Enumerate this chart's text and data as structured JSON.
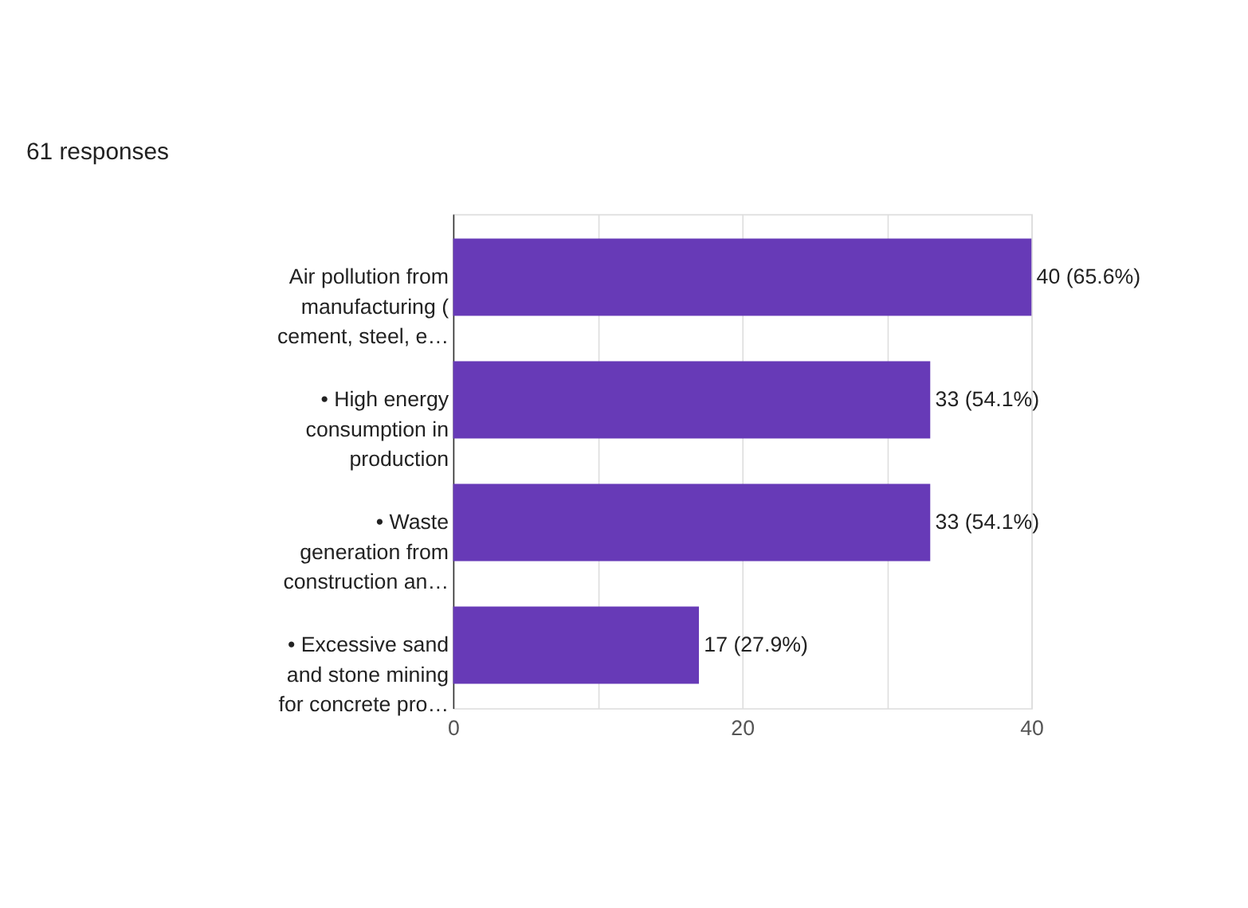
{
  "chart_data": {
    "type": "bar",
    "orientation": "horizontal",
    "title": "61 responses",
    "categories": [
      "Air pollution from\nmanufacturing (\ncement, steel, e…",
      "• High energy\nconsumption in\nproduction",
      "• Waste\ngeneration from\nconstruction an…",
      "• Excessive sand\nand stone mining\nfor concrete pro…"
    ],
    "values": [
      40,
      33,
      33,
      17
    ],
    "color": "#673ab7",
    "value_labels": [
      "40 (65.6%)",
      "33 (54.1%)",
      "33 (54.1%)",
      "17 (27.9%)"
    ],
    "xlim": [
      0,
      40
    ],
    "xticks": [
      0,
      {
        "value": 10,
        "label": null
      },
      20,
      {
        "value": 30,
        "label": null
      },
      40
    ],
    "grid": "x"
  }
}
